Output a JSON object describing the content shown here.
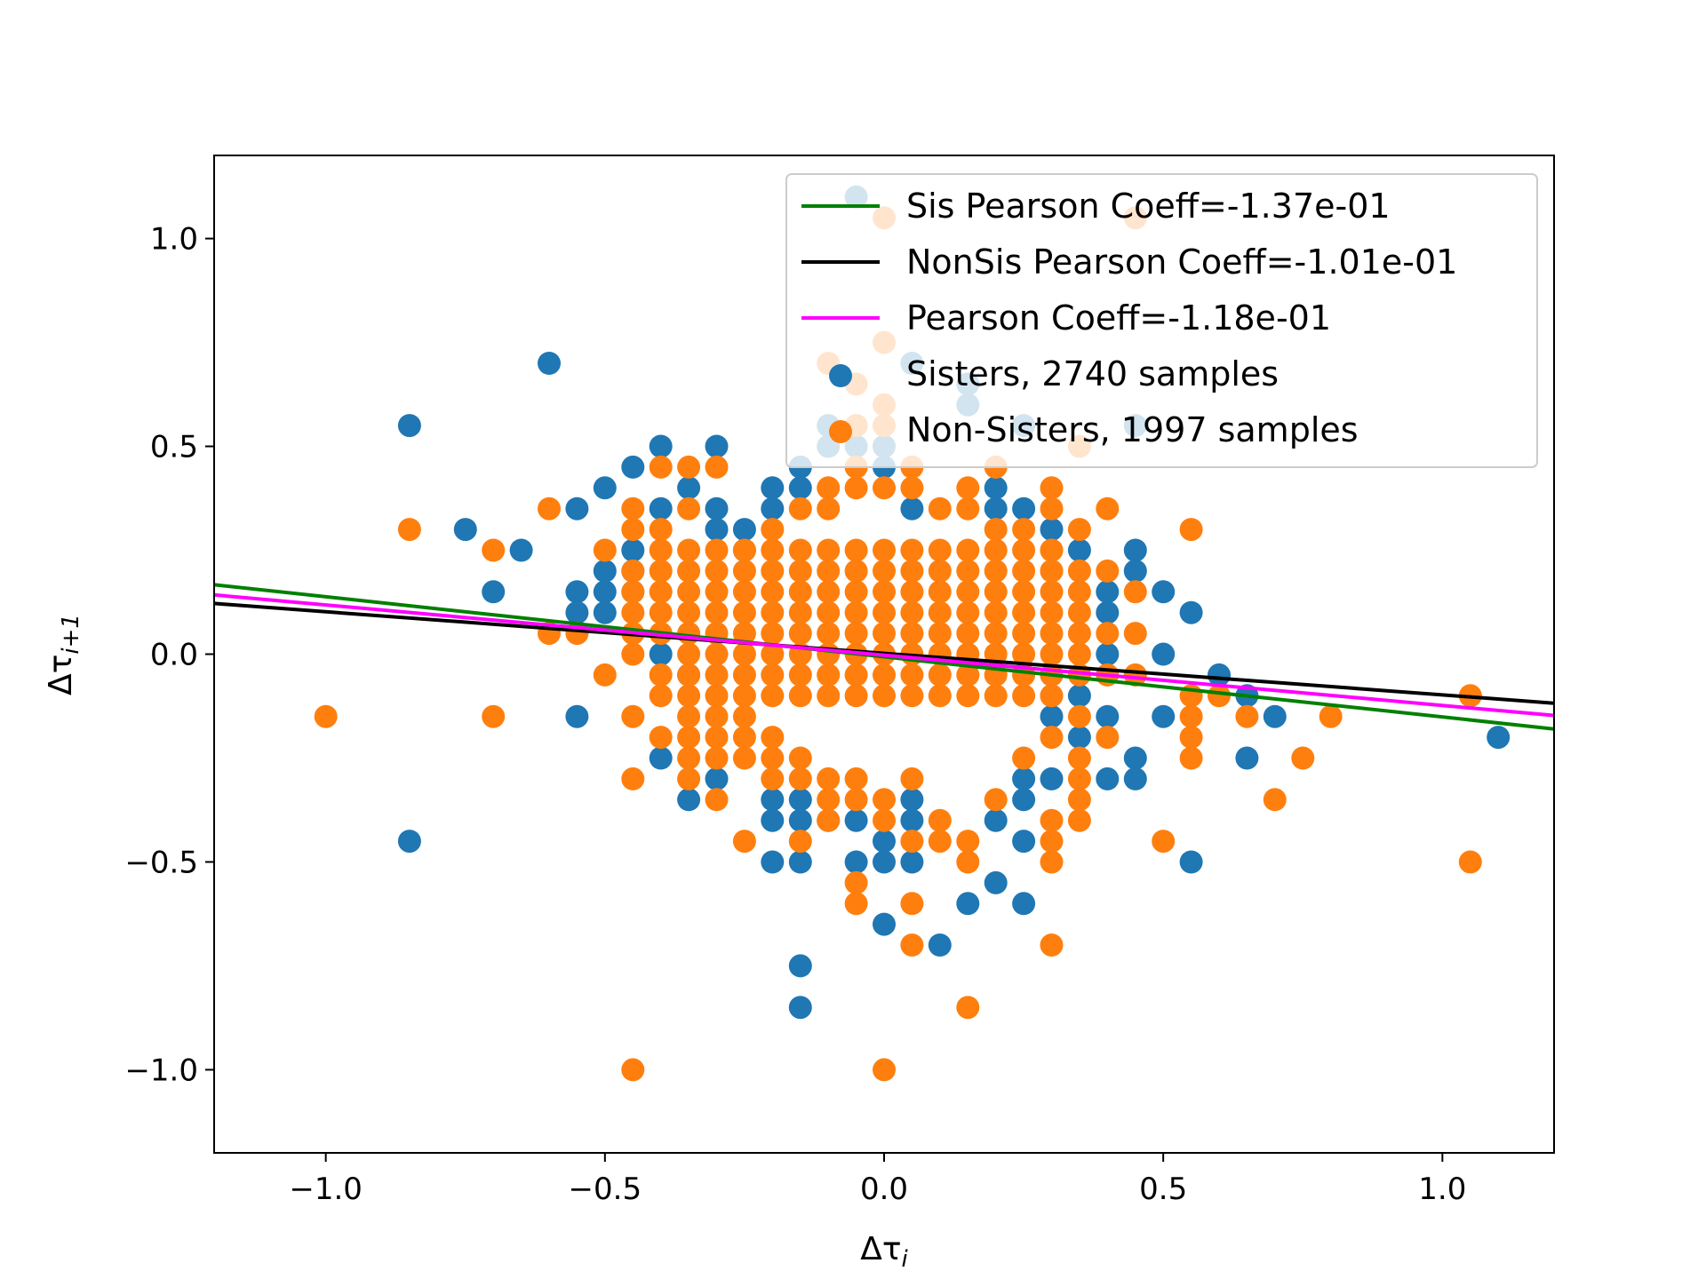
{
  "chart_data": {
    "type": "scatter",
    "title": "",
    "xlabel": {
      "main": "Δτ",
      "sub": "i"
    },
    "ylabel": {
      "main": "Δτ",
      "sub": "i+1"
    },
    "xlim": [
      -1.2,
      1.2
    ],
    "ylim": [
      -1.2,
      1.2
    ],
    "xticks": [
      -1.0,
      -0.5,
      0.0,
      0.5,
      1.0
    ],
    "yticks": [
      -1.0,
      -0.5,
      0.0,
      0.5,
      1.0
    ],
    "xtick_labels": [
      "−1.0",
      "−0.5",
      "0.0",
      "0.5",
      "1.0"
    ],
    "ytick_labels": [
      "−1.0",
      "−0.5",
      "0.0",
      "0.5",
      "1.0"
    ],
    "grid": false,
    "legend_position": "top-right",
    "lines": [
      {
        "name": "Sis Pearson Coeff=-1.37e-01",
        "color": "#008000",
        "slope": -0.1446,
        "intercept": -0.0065
      },
      {
        "name": "NonSis Pearson Coeff=-1.01e-01",
        "color": "#000000",
        "slope": -0.1,
        "intercept": 0.002
      },
      {
        "name": "Pearson Coeff=-1.18e-01",
        "color": "#ff00ff",
        "slope": -0.1209,
        "intercept": -0.0025
      }
    ],
    "series": [
      {
        "name": "Sisters, 2740 samples",
        "color": "#1f77b4",
        "points": [
          [
            -0.85,
            0.55
          ],
          [
            -0.85,
            -0.45
          ],
          [
            -0.75,
            0.3
          ],
          [
            -0.7,
            0.15
          ],
          [
            -0.65,
            0.25
          ],
          [
            -0.6,
            0.7
          ],
          [
            -0.55,
            0.35
          ],
          [
            -0.55,
            0.15
          ],
          [
            -0.55,
            0.1
          ],
          [
            -0.55,
            -0.15
          ],
          [
            -0.5,
            0.4
          ],
          [
            -0.5,
            0.2
          ],
          [
            -0.5,
            0.15
          ],
          [
            -0.5,
            0.1
          ],
          [
            -0.45,
            0.45
          ],
          [
            -0.45,
            0.25
          ],
          [
            -0.45,
            0.2
          ],
          [
            -0.45,
            0.15
          ],
          [
            -0.4,
            0.5
          ],
          [
            -0.4,
            0.35
          ],
          [
            -0.4,
            0.0
          ],
          [
            -0.4,
            -0.25
          ],
          [
            -0.35,
            0.4
          ],
          [
            -0.35,
            -0.05
          ],
          [
            -0.35,
            -0.35
          ],
          [
            -0.3,
            0.5
          ],
          [
            -0.3,
            0.35
          ],
          [
            -0.3,
            0.3
          ],
          [
            -0.3,
            -0.3
          ],
          [
            -0.25,
            0.3
          ],
          [
            -0.25,
            0.25
          ],
          [
            -0.2,
            0.4
          ],
          [
            -0.2,
            0.35
          ],
          [
            -0.2,
            -0.35
          ],
          [
            -0.2,
            -0.4
          ],
          [
            -0.2,
            -0.5
          ],
          [
            -0.15,
            0.45
          ],
          [
            -0.15,
            0.4
          ],
          [
            -0.15,
            -0.35
          ],
          [
            -0.15,
            -0.4
          ],
          [
            -0.15,
            -0.5
          ],
          [
            -0.15,
            -0.75
          ],
          [
            -0.15,
            -0.85
          ],
          [
            -0.1,
            0.55
          ],
          [
            -0.1,
            0.5
          ],
          [
            -0.1,
            -0.4
          ],
          [
            -0.05,
            1.1
          ],
          [
            -0.05,
            0.5
          ],
          [
            -0.05,
            -0.4
          ],
          [
            -0.05,
            -0.5
          ],
          [
            0.0,
            0.5
          ],
          [
            0.0,
            0.45
          ],
          [
            0.0,
            -0.45
          ],
          [
            0.0,
            -0.5
          ],
          [
            0.0,
            -0.65
          ],
          [
            0.05,
            0.7
          ],
          [
            0.05,
            0.35
          ],
          [
            0.05,
            -0.35
          ],
          [
            0.05,
            -0.4
          ],
          [
            0.05,
            -0.5
          ],
          [
            0.1,
            -0.7
          ],
          [
            0.15,
            0.65
          ],
          [
            0.15,
            0.6
          ],
          [
            0.15,
            -0.6
          ],
          [
            0.2,
            0.4
          ],
          [
            0.2,
            0.35
          ],
          [
            0.2,
            -0.4
          ],
          [
            0.2,
            -0.55
          ],
          [
            0.25,
            0.55
          ],
          [
            0.25,
            0.35
          ],
          [
            0.25,
            -0.3
          ],
          [
            0.25,
            -0.35
          ],
          [
            0.25,
            -0.45
          ],
          [
            0.25,
            -0.6
          ],
          [
            0.3,
            0.3
          ],
          [
            0.3,
            -0.05
          ],
          [
            0.3,
            -0.15
          ],
          [
            0.3,
            -0.3
          ],
          [
            0.35,
            0.25
          ],
          [
            0.35,
            -0.1
          ],
          [
            0.35,
            -0.2
          ],
          [
            0.4,
            0.15
          ],
          [
            0.4,
            0.1
          ],
          [
            0.4,
            0.0
          ],
          [
            0.4,
            -0.15
          ],
          [
            0.4,
            -0.3
          ],
          [
            0.45,
            0.55
          ],
          [
            0.45,
            0.25
          ],
          [
            0.45,
            0.2
          ],
          [
            0.45,
            -0.25
          ],
          [
            0.45,
            -0.3
          ],
          [
            0.5,
            0.15
          ],
          [
            0.5,
            0.0
          ],
          [
            0.5,
            -0.15
          ],
          [
            0.55,
            0.1
          ],
          [
            0.55,
            -0.5
          ],
          [
            0.6,
            -0.05
          ],
          [
            0.65,
            -0.1
          ],
          [
            0.65,
            -0.25
          ],
          [
            0.7,
            -0.15
          ],
          [
            1.1,
            -0.2
          ]
        ]
      },
      {
        "name": "Non-Sisters, 1997 samples",
        "color": "#ff7f0e",
        "points": [
          [
            -1.0,
            -0.15
          ],
          [
            -0.85,
            0.3
          ],
          [
            -0.7,
            0.25
          ],
          [
            -0.7,
            -0.15
          ],
          [
            -0.6,
            0.35
          ],
          [
            -0.6,
            0.05
          ],
          [
            -0.55,
            0.05
          ],
          [
            -0.5,
            0.25
          ],
          [
            -0.5,
            -0.05
          ],
          [
            -0.45,
            0.35
          ],
          [
            -0.45,
            0.3
          ],
          [
            -0.45,
            0.2
          ],
          [
            -0.45,
            0.15
          ],
          [
            -0.45,
            0.1
          ],
          [
            -0.45,
            0.05
          ],
          [
            -0.45,
            0.0
          ],
          [
            -0.45,
            -0.15
          ],
          [
            -0.45,
            -0.3
          ],
          [
            -0.45,
            -1.0
          ],
          [
            -0.4,
            0.45
          ],
          [
            -0.4,
            0.3
          ],
          [
            -0.4,
            0.25
          ],
          [
            -0.4,
            0.2
          ],
          [
            -0.4,
            0.15
          ],
          [
            -0.4,
            0.1
          ],
          [
            -0.4,
            0.05
          ],
          [
            -0.4,
            -0.05
          ],
          [
            -0.4,
            -0.1
          ],
          [
            -0.4,
            -0.2
          ],
          [
            -0.35,
            0.45
          ],
          [
            -0.35,
            0.35
          ],
          [
            -0.35,
            -0.15
          ],
          [
            -0.35,
            -0.2
          ],
          [
            -0.35,
            -0.25
          ],
          [
            -0.35,
            -0.3
          ],
          [
            -0.3,
            0.45
          ],
          [
            -0.3,
            -0.15
          ],
          [
            -0.3,
            -0.2
          ],
          [
            -0.3,
            -0.25
          ],
          [
            -0.3,
            -0.35
          ],
          [
            -0.25,
            -0.15
          ],
          [
            -0.25,
            -0.2
          ],
          [
            -0.25,
            -0.25
          ],
          [
            -0.25,
            -0.45
          ],
          [
            -0.2,
            0.3
          ],
          [
            -0.2,
            -0.2
          ],
          [
            -0.2,
            -0.25
          ],
          [
            -0.2,
            -0.3
          ],
          [
            -0.15,
            0.35
          ],
          [
            -0.15,
            -0.25
          ],
          [
            -0.15,
            -0.3
          ],
          [
            -0.15,
            -0.45
          ],
          [
            -0.1,
            0.7
          ],
          [
            -0.1,
            0.4
          ],
          [
            -0.1,
            0.35
          ],
          [
            -0.1,
            -0.3
          ],
          [
            -0.1,
            -0.35
          ],
          [
            -0.1,
            -0.4
          ],
          [
            -0.05,
            0.65
          ],
          [
            -0.05,
            0.55
          ],
          [
            -0.05,
            0.45
          ],
          [
            -0.05,
            0.4
          ],
          [
            -0.05,
            -0.3
          ],
          [
            -0.05,
            -0.35
          ],
          [
            -0.05,
            -0.55
          ],
          [
            -0.05,
            -0.6
          ],
          [
            0.0,
            1.05
          ],
          [
            0.0,
            0.75
          ],
          [
            0.0,
            0.6
          ],
          [
            0.0,
            0.55
          ],
          [
            0.0,
            0.4
          ],
          [
            0.0,
            -0.35
          ],
          [
            0.0,
            -0.4
          ],
          [
            0.0,
            -1.0
          ],
          [
            0.05,
            0.45
          ],
          [
            0.05,
            0.4
          ],
          [
            0.05,
            -0.3
          ],
          [
            0.05,
            -0.45
          ],
          [
            0.05,
            -0.6
          ],
          [
            0.05,
            -0.7
          ],
          [
            0.1,
            0.35
          ],
          [
            0.1,
            -0.4
          ],
          [
            0.1,
            -0.45
          ],
          [
            0.15,
            0.4
          ],
          [
            0.15,
            0.35
          ],
          [
            0.15,
            -0.45
          ],
          [
            0.15,
            -0.5
          ],
          [
            0.15,
            -0.85
          ],
          [
            0.2,
            0.45
          ],
          [
            0.2,
            0.3
          ],
          [
            0.2,
            -0.35
          ],
          [
            0.25,
            0.3
          ],
          [
            0.25,
            -0.25
          ],
          [
            0.3,
            0.4
          ],
          [
            0.3,
            0.35
          ],
          [
            0.3,
            0.25
          ],
          [
            0.3,
            0.2
          ],
          [
            0.3,
            -0.1
          ],
          [
            0.3,
            -0.2
          ],
          [
            0.3,
            -0.4
          ],
          [
            0.3,
            -0.45
          ],
          [
            0.3,
            -0.5
          ],
          [
            0.3,
            -0.7
          ],
          [
            0.35,
            0.5
          ],
          [
            0.35,
            0.3
          ],
          [
            0.35,
            0.2
          ],
          [
            0.35,
            0.15
          ],
          [
            0.35,
            0.1
          ],
          [
            0.35,
            0.05
          ],
          [
            0.35,
            0.0
          ],
          [
            0.35,
            -0.05
          ],
          [
            0.35,
            -0.15
          ],
          [
            0.35,
            -0.25
          ],
          [
            0.35,
            -0.3
          ],
          [
            0.35,
            -0.35
          ],
          [
            0.35,
            -0.4
          ],
          [
            0.4,
            0.35
          ],
          [
            0.4,
            0.2
          ],
          [
            0.4,
            0.05
          ],
          [
            0.4,
            -0.05
          ],
          [
            0.4,
            -0.2
          ],
          [
            0.45,
            1.05
          ],
          [
            0.45,
            0.15
          ],
          [
            0.45,
            0.05
          ],
          [
            0.45,
            -0.05
          ],
          [
            0.5,
            -0.45
          ],
          [
            0.55,
            0.3
          ],
          [
            0.55,
            -0.1
          ],
          [
            0.55,
            -0.15
          ],
          [
            0.55,
            -0.2
          ],
          [
            0.55,
            -0.25
          ],
          [
            0.6,
            -0.1
          ],
          [
            0.65,
            -0.15
          ],
          [
            0.7,
            -0.35
          ],
          [
            0.75,
            -0.25
          ],
          [
            0.8,
            -0.15
          ],
          [
            1.05,
            -0.1
          ],
          [
            1.05,
            -0.5
          ]
        ]
      }
    ],
    "dense_core": {
      "color": "#ff7f0e",
      "x_min": -0.35,
      "x_max": 0.3,
      "y_min": -0.1,
      "y_max": 0.25
    },
    "legend": [
      {
        "label": "Sis Pearson Coeff=-1.37e-01",
        "kind": "line",
        "color": "#008000"
      },
      {
        "label": "NonSis Pearson Coeff=-1.01e-01",
        "kind": "line",
        "color": "#000000"
      },
      {
        "label": "Pearson Coeff=-1.18e-01",
        "kind": "line",
        "color": "#ff00ff"
      },
      {
        "label": "Sisters, 2740 samples",
        "kind": "marker",
        "color": "#1f77b4"
      },
      {
        "label": "Non-Sisters, 1997 samples",
        "kind": "marker",
        "color": "#ff7f0e"
      }
    ]
  }
}
